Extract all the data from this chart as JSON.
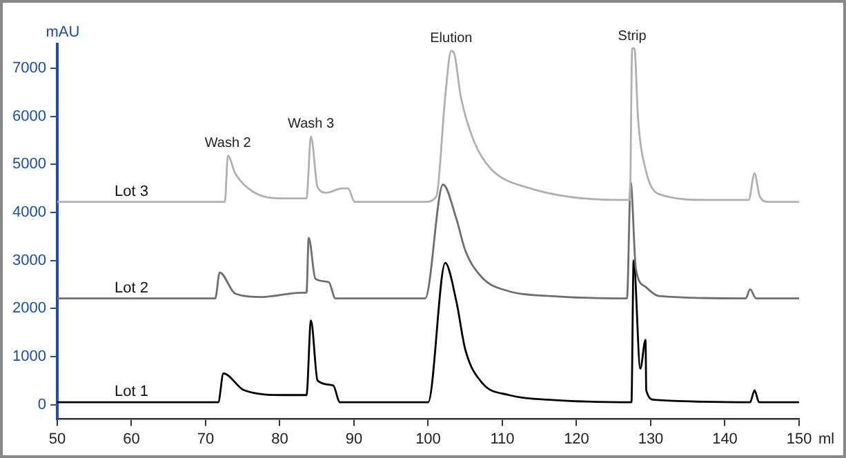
{
  "chart_data": {
    "type": "line",
    "xlabel": "ml",
    "ylabel": "mAU",
    "xlim": [
      50,
      150
    ],
    "ylim": [
      -300,
      7500
    ],
    "xticks": [
      50,
      60,
      70,
      80,
      90,
      100,
      110,
      120,
      130,
      140,
      150
    ],
    "yticks": [
      0,
      1000,
      2000,
      3000,
      4000,
      5000,
      6000,
      7000
    ],
    "grid": false,
    "legend": false,
    "marker": "none",
    "line_style": "solid",
    "series": [
      {
        "name": "Lot 3",
        "color": "#b0b0b0",
        "x": [
          50,
          72.6,
          73.0,
          74.0,
          76.4,
          80.6,
          83.3,
          83.6,
          84.2,
          85.1,
          86.3,
          88.4,
          89.2,
          90.1,
          99.6,
          101.1,
          102.3,
          103.1,
          103.5,
          104.4,
          106.2,
          108.5,
          113.3,
          125.5,
          127.2,
          127.5,
          127.8,
          128.3,
          129.3,
          131.1,
          137.7,
          143.2,
          144.0,
          144.7,
          145.8,
          150
        ],
        "values": [
          4220,
          4220,
          5180,
          4810,
          4430,
          4290,
          4290,
          4290,
          5580,
          4520,
          4410,
          4500,
          4500,
          4220,
          4220,
          4330,
          6410,
          7360,
          7310,
          6410,
          5470,
          4900,
          4520,
          4260,
          4260,
          7410,
          7410,
          5940,
          4900,
          4380,
          4260,
          4260,
          4810,
          4330,
          4220,
          4220
        ]
      },
      {
        "name": "Lot 2",
        "color": "#6e6e6e",
        "x": [
          50,
          71.3,
          71.9,
          74.0,
          77.6,
          82.9,
          83.6,
          83.9,
          84.8,
          86.6,
          87.5,
          99.6,
          102.0,
          103.8,
          105.0,
          107.3,
          110.9,
          116.4,
          126.8,
          127.3,
          128.0,
          129.3,
          131.1,
          142.8,
          143.4,
          144.2,
          150
        ],
        "values": [
          2210,
          2210,
          2750,
          2310,
          2240,
          2330,
          2330,
          3470,
          2620,
          2550,
          2210,
          2210,
          4580,
          3870,
          3210,
          2640,
          2360,
          2260,
          2210,
          4630,
          2830,
          2450,
          2260,
          2210,
          2400,
          2210,
          2210
        ]
      },
      {
        "name": "Lot 1",
        "color": "#000000",
        "x": [
          50,
          71.7,
          72.4,
          75.2,
          80.6,
          83.6,
          84.2,
          85.1,
          87.2,
          88.1,
          100.0,
          102.3,
          103.8,
          105.0,
          107.3,
          110.9,
          116.4,
          127.4,
          127.7,
          128.6,
          129.3,
          129.4,
          130.5,
          143.4,
          144.0,
          144.6,
          150
        ],
        "values": [
          50,
          50,
          650,
          300,
          200,
          200,
          1750,
          500,
          400,
          50,
          50,
          2950,
          2150,
          1150,
          450,
          200,
          100,
          50,
          3000,
          750,
          1350,
          300,
          100,
          50,
          300,
          50,
          50
        ]
      }
    ],
    "annotations": [
      {
        "text": "Wash 2",
        "x": 73.0,
        "y": 5180
      },
      {
        "text": "Wash 3",
        "x": 84.2,
        "y": 5580
      },
      {
        "text": "Elution",
        "x": 103.1,
        "y": 7360
      },
      {
        "text": "Strip",
        "x": 127.5,
        "y": 7410
      }
    ]
  }
}
